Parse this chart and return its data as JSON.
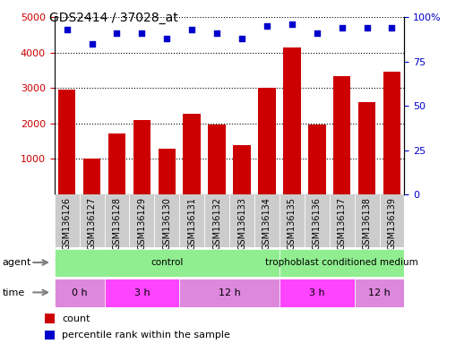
{
  "title": "GDS2414 / 37028_at",
  "samples": [
    "GSM136126",
    "GSM136127",
    "GSM136128",
    "GSM136129",
    "GSM136130",
    "GSM136131",
    "GSM136132",
    "GSM136133",
    "GSM136134",
    "GSM136135",
    "GSM136136",
    "GSM136137",
    "GSM136138",
    "GSM136139"
  ],
  "counts": [
    2950,
    1020,
    1720,
    2100,
    1280,
    2280,
    1970,
    1390,
    3010,
    4150,
    1960,
    3330,
    2600,
    3460
  ],
  "percentiles": [
    93,
    85,
    91,
    91,
    88,
    93,
    91,
    88,
    95,
    96,
    91,
    94,
    94,
    94
  ],
  "bar_color": "#cc0000",
  "dot_color": "#0000cc",
  "ylim_left": [
    0,
    5000
  ],
  "ylim_right": [
    0,
    100
  ],
  "yticks_left": [
    1000,
    2000,
    3000,
    4000,
    5000
  ],
  "ytick_labels_left": [
    "1000",
    "2000",
    "3000",
    "4000",
    "5000"
  ],
  "yticks_right": [
    0,
    25,
    50,
    75,
    100
  ],
  "ytick_labels_right": [
    "0",
    "25",
    "50",
    "75",
    "100%"
  ],
  "agent_control_label": "control",
  "agent_trophoblast_label": "trophoblast conditioned medium",
  "agent_row_label": "agent",
  "time_row_label": "time",
  "time_segments": [
    {
      "label": "0 h",
      "start": 0,
      "end": 2
    },
    {
      "label": "3 h",
      "start": 2,
      "end": 5
    },
    {
      "label": "12 h",
      "start": 5,
      "end": 9
    },
    {
      "label": "3 h",
      "start": 9,
      "end": 12
    },
    {
      "label": "12 h",
      "start": 12,
      "end": 14
    }
  ],
  "agent_segments": [
    {
      "label": "control",
      "start": 0,
      "end": 9,
      "color": "#aaffaa"
    },
    {
      "label": "trophoblast conditioned medium",
      "start": 9,
      "end": 14,
      "color": "#aaffaa"
    }
  ],
  "time_colors": [
    "#dd88dd",
    "#ff44ff",
    "#dd88dd",
    "#ff44ff",
    "#dd88dd"
  ],
  "legend_count_label": "count",
  "legend_pct_label": "percentile rank within the sample",
  "ticklabel_color_left": "#cc0000",
  "ticklabel_color_right": "#0000cc",
  "xtick_bg_color": "#cccccc",
  "control_color": "#90EE90",
  "trophoblast_color": "#90EE90"
}
